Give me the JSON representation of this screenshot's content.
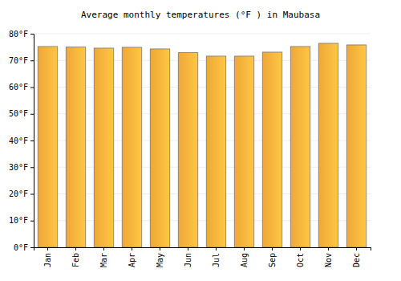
{
  "chart_data": {
    "type": "bar",
    "title": "Average monthly temperatures (°F ) in Maubasa",
    "categories": [
      "Jan",
      "Feb",
      "Mar",
      "Apr",
      "May",
      "Jun",
      "Jul",
      "Aug",
      "Sep",
      "Oct",
      "Nov",
      "Dec"
    ],
    "values": [
      75.2,
      75.0,
      74.6,
      74.9,
      74.3,
      72.9,
      71.6,
      71.6,
      73.1,
      75.2,
      76.4,
      75.8
    ],
    "color": "#fbb03b",
    "ylim": [
      0,
      80
    ],
    "yticks": [
      {
        "value": 0,
        "label": "0°F"
      },
      {
        "value": 10,
        "label": "10°F"
      },
      {
        "value": 20,
        "label": "20°F"
      },
      {
        "value": 30,
        "label": "30°F"
      },
      {
        "value": 40,
        "label": "40°F"
      },
      {
        "value": 50,
        "label": "50°F"
      },
      {
        "value": 60,
        "label": "60°F"
      },
      {
        "value": 70,
        "label": "70°F"
      },
      {
        "value": 80,
        "label": "80°F"
      }
    ],
    "grid": true
  }
}
